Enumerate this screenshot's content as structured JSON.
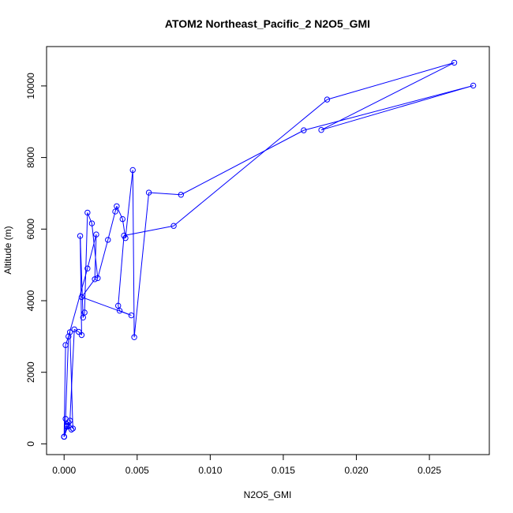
{
  "chart_data": {
    "type": "scatter",
    "title": "ATOM2 Northeast_Pacific_2 N2O5_GMI",
    "xlabel": "N2O5_GMI",
    "ylabel": "Altitude (m)",
    "xlim": [
      -0.0012,
      0.0291
    ],
    "ylim": [
      -300,
      11100
    ],
    "x_ticks": [
      0.0,
      0.005,
      0.01,
      0.015,
      0.02,
      0.025
    ],
    "x_tick_labels": [
      "0.000",
      "0.005",
      "0.010",
      "0.015",
      "0.020",
      "0.025"
    ],
    "y_ticks": [
      0,
      2000,
      4000,
      6000,
      8000,
      10000
    ],
    "y_tick_labels": [
      "0",
      "2000",
      "4000",
      "6000",
      "8000",
      "10000"
    ],
    "grid": false,
    "series": [
      {
        "color": "#0000ff",
        "marker": "open-circle",
        "line": true,
        "x": [
          0.0,
          0.0002,
          0.0003,
          0.0006,
          0.0004,
          0.0001,
          0.0,
          0.0004,
          0.0007,
          0.001,
          0.0012,
          0.0011,
          0.0013,
          0.0014,
          0.0016,
          0.0019,
          0.0023,
          0.003,
          0.0035,
          0.0036,
          0.004,
          0.0042,
          0.0047,
          0.0048,
          0.0058,
          0.008,
          0.0164,
          0.028,
          0.0176,
          0.0267,
          0.018,
          0.0075,
          0.0041,
          0.0037,
          0.0038,
          0.0046,
          0.0012,
          0.0021,
          0.0022,
          0.0016,
          0.0003,
          0.0001,
          0.0,
          0.0002,
          0.0002,
          0.0005
        ],
        "y": [
          200,
          540,
          600,
          430,
          3120,
          2760,
          200,
          650,
          3200,
          3130,
          3040,
          5810,
          3530,
          3670,
          6460,
          6160,
          4630,
          5700,
          6490,
          6640,
          6280,
          5750,
          7650,
          2980,
          7020,
          6960,
          8760,
          10010,
          8770,
          10650,
          9620,
          6090,
          5820,
          3860,
          3720,
          3590,
          4100,
          4600,
          5850,
          4900,
          3000,
          700,
          200,
          500,
          480,
          400
        ]
      }
    ]
  }
}
